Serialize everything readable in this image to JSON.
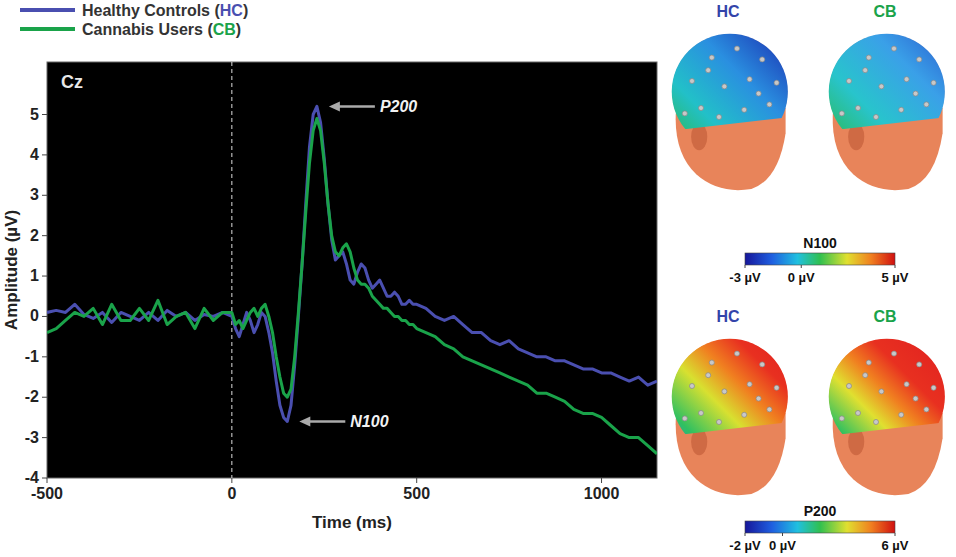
{
  "chart_data": [
    {
      "type": "line",
      "title": "Cz",
      "x_label": "Time (ms)",
      "y_label": "Amplitude (µV)",
      "x": [
        -500,
        -475,
        -450,
        -425,
        -400,
        -375,
        -350,
        -325,
        -300,
        -275,
        -250,
        -225,
        -200,
        -175,
        -150,
        -125,
        -100,
        -75,
        -50,
        -25,
        0,
        10,
        20,
        30,
        40,
        50,
        60,
        70,
        80,
        90,
        100,
        110,
        120,
        130,
        140,
        150,
        160,
        170,
        180,
        190,
        200,
        210,
        220,
        230,
        240,
        250,
        260,
        270,
        280,
        290,
        300,
        310,
        320,
        330,
        340,
        350,
        360,
        370,
        380,
        390,
        400,
        410,
        420,
        430,
        440,
        450,
        460,
        470,
        480,
        490,
        500,
        525,
        550,
        575,
        600,
        625,
        650,
        675,
        700,
        725,
        750,
        775,
        800,
        825,
        850,
        875,
        900,
        925,
        950,
        975,
        1000,
        1025,
        1050,
        1075,
        1100,
        1125,
        1150
      ],
      "series": [
        {
          "name": "Healthy Controls (HC)",
          "color": "#4a4fb0",
          "values": [
            0.1,
            0.15,
            0.1,
            0.3,
            0.05,
            -0.05,
            0.1,
            -0.15,
            0.1,
            0.0,
            -0.1,
            0.1,
            -0.1,
            0.15,
            0.0,
            0.1,
            -0.1,
            0.05,
            0.0,
            0.1,
            0.0,
            -0.3,
            -0.5,
            -0.2,
            0.1,
            -0.1,
            -0.4,
            -0.2,
            0.1,
            0.0,
            -0.4,
            -0.9,
            -1.6,
            -2.2,
            -2.5,
            -2.6,
            -2.2,
            -1.2,
            0.0,
            1.3,
            2.8,
            4.2,
            5.0,
            5.2,
            4.8,
            3.9,
            2.8,
            1.9,
            1.4,
            1.5,
            1.6,
            1.3,
            0.9,
            0.8,
            1.1,
            1.3,
            1.2,
            0.9,
            0.7,
            0.8,
            0.9,
            0.7,
            0.5,
            0.5,
            0.6,
            0.5,
            0.3,
            0.3,
            0.4,
            0.3,
            0.3,
            0.2,
            0.0,
            -0.1,
            0.0,
            -0.2,
            -0.4,
            -0.4,
            -0.6,
            -0.7,
            -0.6,
            -0.8,
            -0.9,
            -1.0,
            -1.0,
            -1.1,
            -1.1,
            -1.2,
            -1.3,
            -1.3,
            -1.4,
            -1.4,
            -1.5,
            -1.6,
            -1.5,
            -1.7,
            -1.6
          ]
        },
        {
          "name": "Cannabis Users (CB)",
          "color": "#1aa34a",
          "values": [
            -0.4,
            -0.3,
            -0.1,
            0.1,
            0.0,
            0.2,
            -0.2,
            0.3,
            -0.1,
            -0.1,
            0.2,
            -0.1,
            0.4,
            -0.2,
            0.0,
            0.1,
            -0.3,
            0.2,
            -0.1,
            0.1,
            0.1,
            -0.2,
            -0.1,
            -0.3,
            -0.1,
            0.1,
            0.2,
            0.0,
            0.2,
            0.3,
            0.0,
            -0.4,
            -1.0,
            -1.5,
            -1.9,
            -2.0,
            -1.8,
            -1.0,
            0.1,
            1.3,
            2.6,
            3.8,
            4.6,
            4.9,
            4.6,
            3.8,
            2.8,
            2.0,
            1.6,
            1.5,
            1.7,
            1.8,
            1.6,
            1.2,
            0.9,
            0.8,
            0.8,
            0.7,
            0.5,
            0.4,
            0.3,
            0.2,
            0.2,
            0.1,
            0.0,
            0.0,
            -0.1,
            -0.1,
            -0.2,
            -0.2,
            -0.3,
            -0.4,
            -0.5,
            -0.7,
            -0.8,
            -1.0,
            -1.1,
            -1.2,
            -1.3,
            -1.4,
            -1.5,
            -1.6,
            -1.7,
            -1.9,
            -1.9,
            -2.0,
            -2.1,
            -2.3,
            -2.4,
            -2.4,
            -2.5,
            -2.7,
            -2.9,
            -3.0,
            -3.0,
            -3.2,
            -3.4
          ]
        }
      ],
      "xlim": [
        -500,
        1150
      ],
      "xticks": [
        -500,
        0,
        500,
        1000
      ],
      "ylim": [
        -4,
        6.3
      ],
      "yticks": [
        -4,
        -3,
        -2,
        -1,
        0,
        1,
        2,
        3,
        4,
        5
      ],
      "grid": false,
      "legend": "top-left",
      "event_time": 0,
      "annotations": [
        {
          "text": "P200",
          "x": 230,
          "y": 5.2
        },
        {
          "text": "N100",
          "x": 150,
          "y": -2.6
        }
      ]
    },
    {
      "type": "topomap",
      "title": "N100",
      "panels": [
        "HC",
        "CB"
      ],
      "colors": [
        "#3344aa",
        "#1aa34a"
      ],
      "colorbar_range": [
        -3,
        5
      ],
      "colorbar_ticks": [
        {
          "value": -3,
          "label": "-3 µV"
        },
        {
          "value": 0,
          "label": "0 µV"
        },
        {
          "value": 5,
          "label": "5 µV"
        }
      ]
    },
    {
      "type": "topomap",
      "title": "P200",
      "panels": [
        "HC",
        "CB"
      ],
      "colors": [
        "#3344aa",
        "#1aa34a"
      ],
      "colorbar_range": [
        -2,
        6
      ],
      "colorbar_ticks": [
        {
          "value": -2,
          "label": "-2 µV"
        },
        {
          "value": 0,
          "label": "0 µV"
        },
        {
          "value": 6,
          "label": "6 µV"
        }
      ]
    }
  ]
}
